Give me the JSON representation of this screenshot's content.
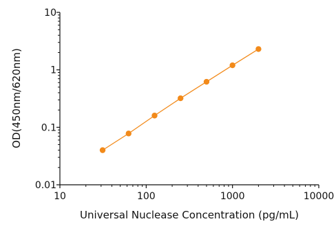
{
  "chart_data": {
    "type": "line",
    "title": "",
    "xlabel": "Universal Nuclease Concentration (pg/mL)",
    "ylabel": "OD(450nm/620nm)",
    "x_scale": "log",
    "y_scale": "log",
    "xlim": [
      10,
      10000
    ],
    "ylim": [
      0.01,
      10
    ],
    "x_ticks": [
      10,
      100,
      1000,
      10000
    ],
    "x_tick_labels": [
      "10",
      "100",
      "1000",
      "10000"
    ],
    "y_ticks": [
      0.01,
      0.1,
      1,
      10
    ],
    "y_tick_labels": [
      "0.01",
      "0.1",
      "1",
      "10"
    ],
    "grid": false,
    "legend": false,
    "series": [
      {
        "color": "#f28a1a",
        "points": [
          {
            "x": 31.25,
            "y": 0.04
          },
          {
            "x": 62.5,
            "y": 0.078
          },
          {
            "x": 125,
            "y": 0.16
          },
          {
            "x": 250,
            "y": 0.32
          },
          {
            "x": 500,
            "y": 0.62
          },
          {
            "x": 1000,
            "y": 1.2
          },
          {
            "x": 2000,
            "y": 2.3
          }
        ]
      }
    ]
  }
}
